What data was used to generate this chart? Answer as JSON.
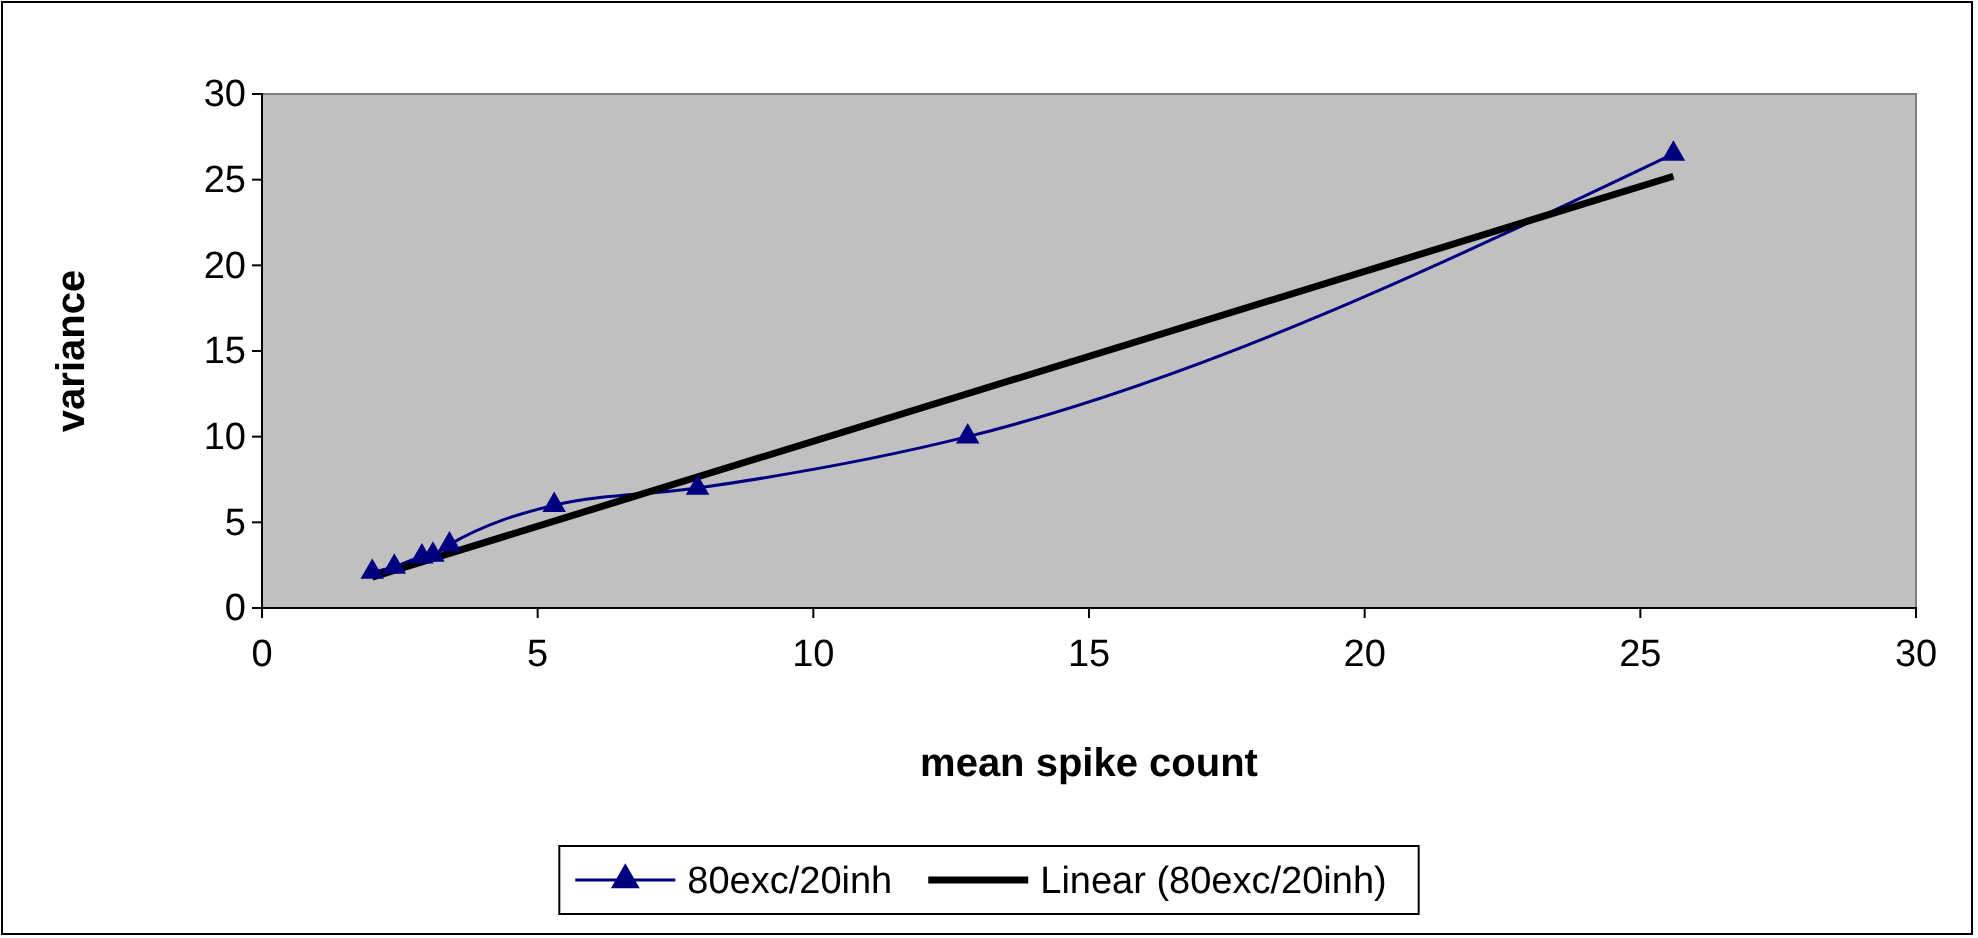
{
  "chart_data": {
    "type": "line",
    "xlabel": "mean spike count",
    "ylabel": "variance",
    "xlim": [
      0,
      30
    ],
    "ylim": [
      0,
      30
    ],
    "xticks": [
      0,
      5,
      10,
      15,
      20,
      25,
      30
    ],
    "yticks": [
      0,
      5,
      10,
      15,
      20,
      25,
      30
    ],
    "grid": false,
    "legend": "bottom",
    "series": [
      {
        "name": "80exc/20inh",
        "color": "#000080",
        "marker": "triangle",
        "x": [
          2.0,
          2.4,
          2.9,
          3.1,
          3.4,
          5.3,
          7.9,
          12.8,
          25.6
        ],
        "values": [
          2.1,
          2.4,
          3.0,
          3.1,
          3.7,
          6.0,
          7.0,
          10.0,
          26.5
        ]
      },
      {
        "name": "Linear (80exc/20inh)",
        "color": "#000000",
        "marker": "none",
        "x": [
          2.0,
          25.6
        ],
        "values": [
          1.8,
          25.2
        ]
      }
    ]
  }
}
